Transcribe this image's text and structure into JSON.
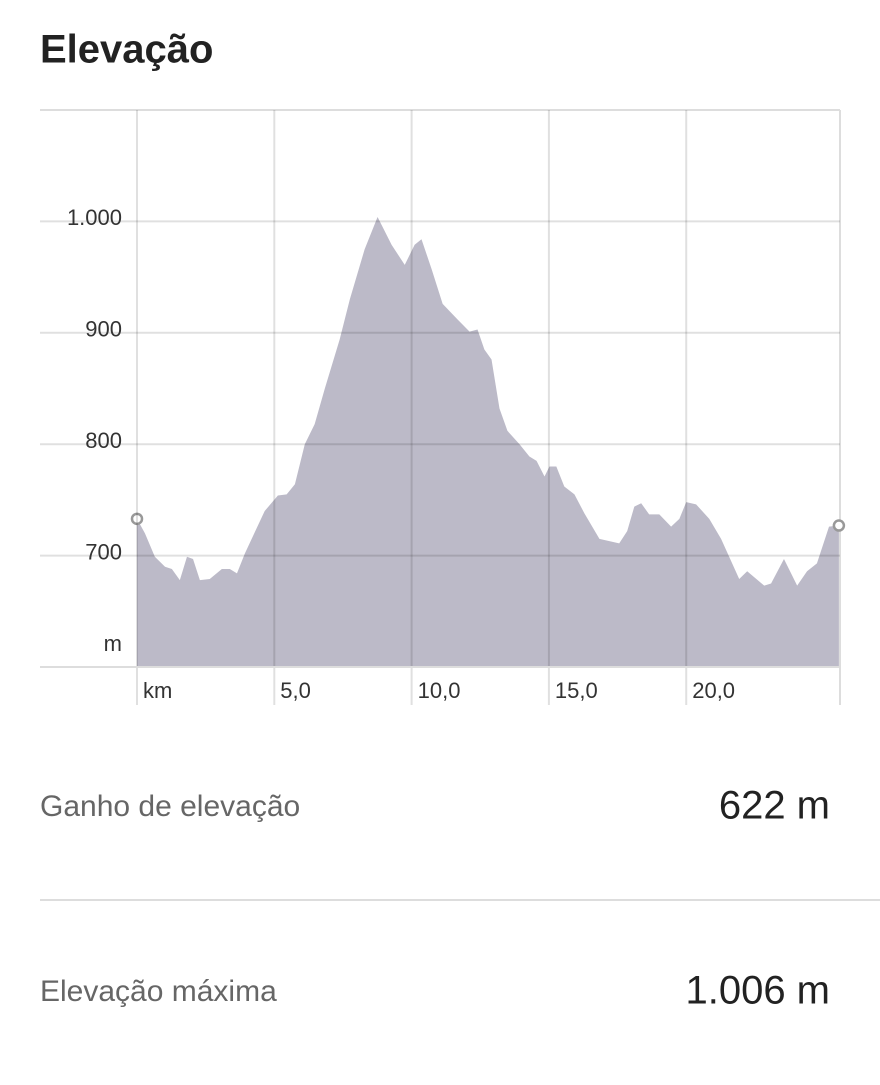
{
  "chart_data": {
    "type": "area",
    "title": "Elevação",
    "y_label": "m",
    "color": "#bcbac8",
    "x": [
      0,
      0.29,
      0.65,
      1.02,
      1.27,
      1.56,
      1.82,
      2.04,
      2.29,
      2.65,
      3.09,
      3.38,
      3.64,
      3.93,
      4.65,
      5.13,
      5.45,
      5.75,
      6.11,
      6.47,
      6.84,
      7.38,
      7.75,
      8.29,
      8.76,
      9.27,
      9.75,
      10.11,
      10.36,
      10.73,
      11.13,
      11.67,
      12.11,
      12.4,
      12.65,
      12.91,
      13.2,
      13.49,
      13.93,
      14.29,
      14.55,
      14.84,
      15.02,
      15.27,
      15.56,
      15.93,
      16.29,
      16.84,
      17.2,
      17.56,
      17.85,
      18.11,
      18.36,
      18.65,
      19.02,
      19.45,
      19.75,
      20.0,
      20.36,
      20.84,
      21.27,
      21.93,
      22.22,
      22.84,
      23.09,
      23.56,
      24.04,
      24.4,
      24.76,
      25.2,
      25.56
    ],
    "values": [
      733,
      720,
      699,
      690,
      688,
      678,
      699,
      697,
      678,
      679,
      688,
      688,
      684,
      702,
      740,
      754,
      755,
      764,
      800,
      818,
      850,
      894,
      930,
      975,
      1004,
      979,
      961,
      979,
      984,
      957,
      926,
      912,
      901,
      903,
      885,
      876,
      832,
      812,
      800,
      789,
      785,
      771,
      780,
      780,
      762,
      755,
      738,
      715,
      713,
      711,
      722,
      744,
      747,
      737,
      737,
      726,
      733,
      748,
      746,
      733,
      715,
      679,
      686,
      673,
      675,
      697,
      673,
      686,
      693,
      726,
      727
    ],
    "xlim": [
      0,
      25.6
    ],
    "ylim": [
      600,
      1100
    ],
    "xticks": [
      {
        "value": 0,
        "label": "km"
      },
      {
        "value": 5,
        "label": "5,0"
      },
      {
        "value": 10,
        "label": "10,0"
      },
      {
        "value": 15,
        "label": "15,0"
      },
      {
        "value": 20,
        "label": "20,0"
      }
    ],
    "yticks": [
      700,
      800,
      900,
      {
        "value": 1000,
        "label": "1.000"
      }
    ],
    "grid": true
  },
  "stats": [
    {
      "label": "Ganho de elevação",
      "value": "622 m"
    },
    {
      "label": "Elevação máxima",
      "value": "1.006 m"
    }
  ]
}
